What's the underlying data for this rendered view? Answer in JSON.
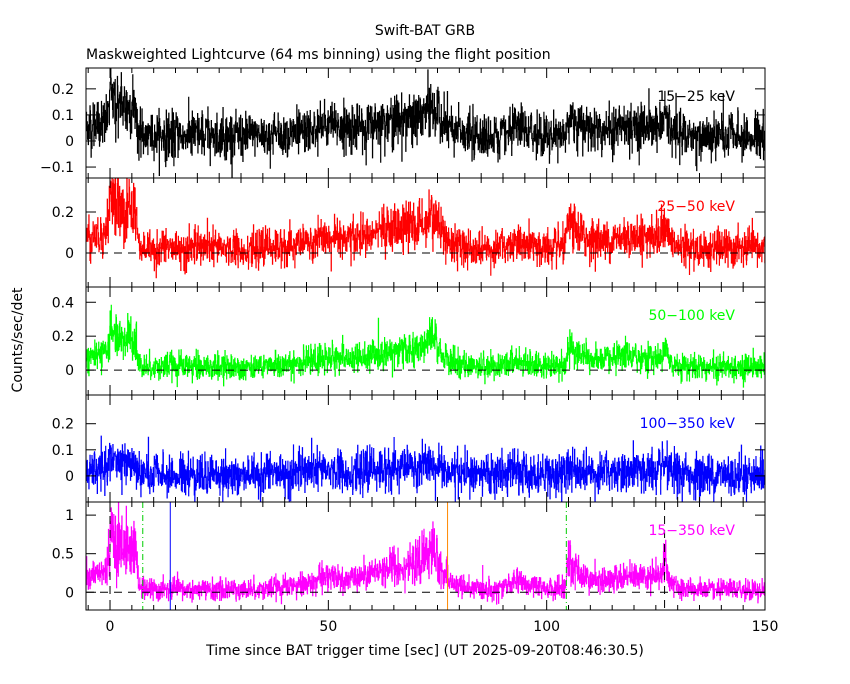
{
  "chart_data": {
    "type": "line",
    "title": "Swift-BAT GRB",
    "subtitle": "Maskweighted Lightcurve (64 ms binning) using the flight position",
    "xlabel": "Time since BAT trigger time [sec] (UT 2025-09-20T08:46:30.5)",
    "ylabel": "Counts/sec/det",
    "xlim": [
      -5.5,
      150
    ],
    "bin_sec": 0.064,
    "x_ticks": [
      0,
      50,
      100,
      150
    ],
    "pulse_model": [
      {
        "t0": -5,
        "t1": 0.5,
        "rise": 2,
        "decay": 1,
        "amp": 0.2
      },
      {
        "t0": 0,
        "t1": 6,
        "rise": 0.5,
        "decay": 0.3,
        "amp": 0.55
      },
      {
        "t0": 49,
        "t1": 52,
        "rise": 5,
        "decay": 4,
        "amp": 0.12
      },
      {
        "t0": 64,
        "t1": 73,
        "rise": 8,
        "decay": 3,
        "amp": 0.3
      },
      {
        "t0": 73.5,
        "t1": 74.5,
        "rise": 1.5,
        "decay": 2,
        "amp": 0.3
      },
      {
        "t0": 93,
        "t1": 93.5,
        "rise": 2,
        "decay": 2.5,
        "amp": 0.13
      },
      {
        "t0": 104.8,
        "t1": 105.2,
        "rise": 0.3,
        "decay": 4,
        "amp": 0.35
      },
      {
        "t0": 118,
        "t1": 125,
        "rise": 6,
        "decay": 1,
        "amp": 0.18
      },
      {
        "t0": 126.7,
        "t1": 127.1,
        "rise": 0.5,
        "decay": 1,
        "amp": 0.4
      }
    ],
    "panels": [
      {
        "name": "15-25 keV",
        "label": "15−25 keV",
        "color": "#000000",
        "ylim": [
          -0.142,
          0.28
        ],
        "y_ticks": [
          -0.1,
          0,
          0.1,
          0.2
        ],
        "y_tick_labels": [
          "−0.1",
          "0",
          "0.1",
          "0.2"
        ],
        "scale": 0.2,
        "baseline": 0.02,
        "noise": 0.045,
        "zero_line": false
      },
      {
        "name": "25-50 keV",
        "label": "25−50 keV",
        "color": "#ff0000",
        "ylim": [
          -0.166,
          0.366
        ],
        "y_ticks": [
          0,
          0.2
        ],
        "y_tick_labels": [
          "0",
          "0.2"
        ],
        "scale": 0.33,
        "baseline": 0.02,
        "noise": 0.045,
        "zero_line": true
      },
      {
        "name": "50-100 keV",
        "label": "50−100 keV",
        "color": "#00ff00",
        "ylim": [
          -0.147,
          0.49
        ],
        "y_ticks": [
          0,
          0.2,
          0.4
        ],
        "y_tick_labels": [
          "0",
          "0.2",
          "0.4"
        ],
        "scale": 0.3,
        "baseline": 0.02,
        "noise": 0.04,
        "zero_line": true
      },
      {
        "name": "100-350 keV",
        "label": "100−350 keV",
        "color": "#0000ff",
        "ylim": [
          -0.1,
          0.31
        ],
        "y_ticks": [
          0,
          0.1,
          0.2
        ],
        "y_tick_labels": [
          "0",
          "0.1",
          "0.2"
        ],
        "scale": 0.08,
        "baseline": 0.005,
        "noise": 0.04,
        "zero_line": false
      },
      {
        "name": "15-350 keV",
        "label": "15−350 keV",
        "color": "#ff00ff",
        "ylim": [
          -0.23,
          1.17
        ],
        "y_ticks": [
          0,
          0.5,
          1
        ],
        "y_tick_labels": [
          "0",
          "0.5",
          "1"
        ],
        "scale": 1.0,
        "baseline": 0.03,
        "noise": 0.07,
        "zero_line": true
      }
    ],
    "markers": [
      {
        "t": 0,
        "color": "#000000",
        "style": "dashed"
      },
      {
        "t": 127,
        "color": "#000000",
        "style": "dashed"
      },
      {
        "t": 7.5,
        "color": "#00cc00",
        "style": "dashdot"
      },
      {
        "t": 104.5,
        "color": "#00cc00",
        "style": "dashdot"
      },
      {
        "t": 13.8,
        "color": "#0000ff",
        "style": "solid"
      },
      {
        "t": 77.3,
        "color": "#ff8800",
        "style": "solid"
      }
    ]
  }
}
